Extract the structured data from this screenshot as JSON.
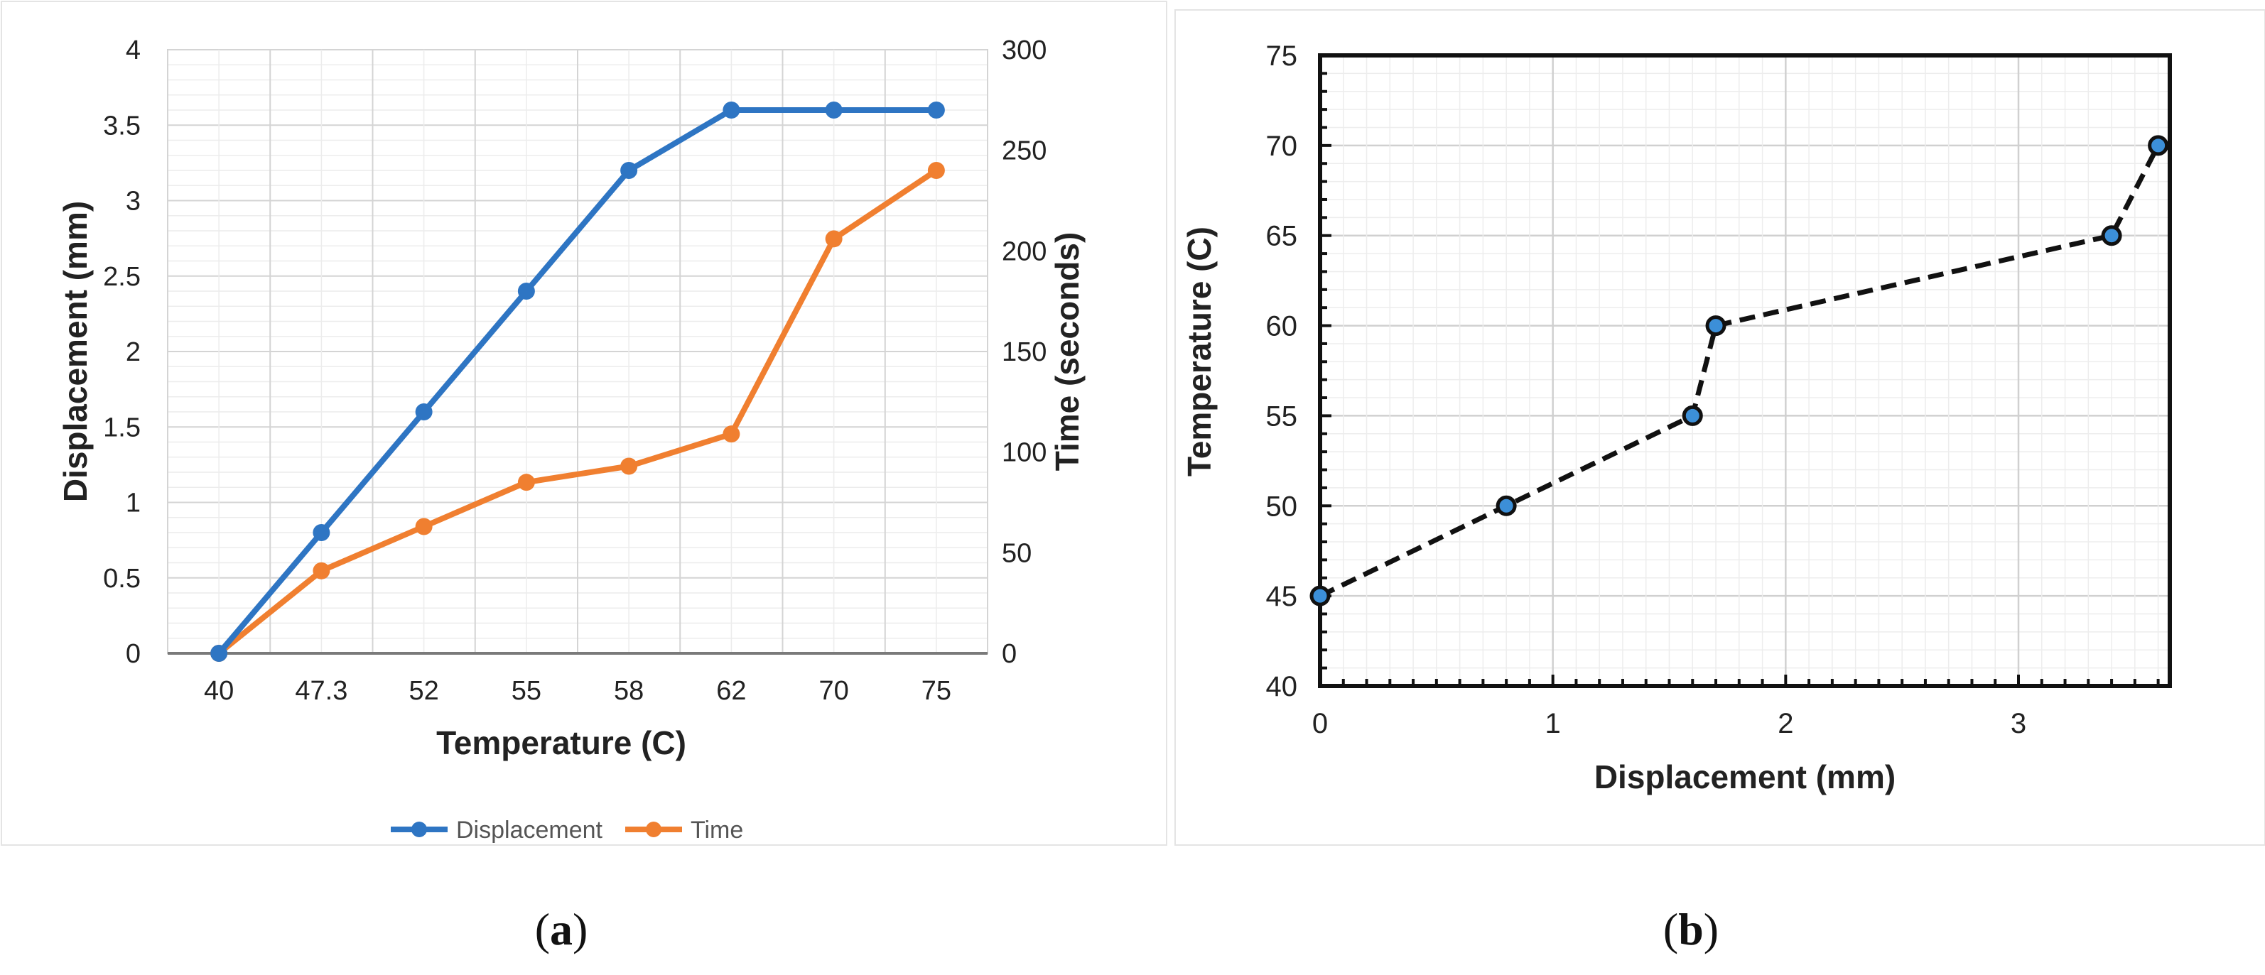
{
  "chart_data": [
    {
      "panel": "a",
      "type": "line",
      "categories": [
        "40",
        "47.3",
        "52",
        "55",
        "58",
        "62",
        "70",
        "75"
      ],
      "xlabel": "Temperature (C)",
      "ylabel": "Displacement (mm)",
      "y2label": "Time (seconds)",
      "ylim": [
        0,
        4
      ],
      "y_ticks": [
        "0",
        "0.5",
        "1",
        "1.5",
        "2",
        "2.5",
        "3",
        "3.5",
        "4"
      ],
      "y2lim": [
        0,
        300
      ],
      "y2_ticks": [
        "0",
        "50",
        "100",
        "150",
        "200",
        "250",
        "300"
      ],
      "series": [
        {
          "name": "Displacement",
          "axis": "left",
          "color": "#2E75C3",
          "values": [
            0,
            0.8,
            1.6,
            2.4,
            3.2,
            3.6,
            3.6,
            3.6
          ]
        },
        {
          "name": "Time",
          "axis": "right",
          "color": "#F07F30",
          "values": [
            0,
            41,
            63,
            85,
            93,
            109,
            206,
            240
          ]
        }
      ],
      "legend": "bottom",
      "grid": true,
      "caption": [
        "(",
        "a",
        ")"
      ]
    },
    {
      "panel": "b",
      "type": "scatter",
      "xlabel": "Displacement (mm)",
      "ylabel": "Temperature (C)",
      "xlim": [
        0,
        3.65
      ],
      "x_ticks": [
        "0",
        "1",
        "2",
        "3"
      ],
      "ylim": [
        40,
        75
      ],
      "y_ticks": [
        "40",
        "45",
        "50",
        "55",
        "60",
        "65",
        "70",
        "75"
      ],
      "series": [
        {
          "name": "Temperature",
          "color": "#111111",
          "marker_color": "#3C8FD8",
          "line_style": "dashed",
          "x": [
            0,
            0.8,
            1.6,
            1.7,
            3.4,
            3.6
          ],
          "y": [
            45,
            50,
            55,
            60,
            65,
            70
          ]
        }
      ],
      "grid": true,
      "caption": [
        "(",
        "b",
        ")"
      ]
    }
  ]
}
